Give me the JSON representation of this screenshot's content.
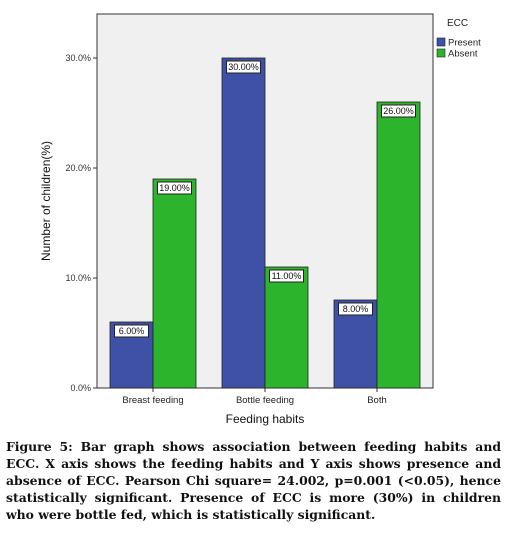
{
  "chart_data": {
    "type": "bar",
    "categories": [
      "Breast feeding",
      "Bottle feeding",
      "Both"
    ],
    "series": [
      {
        "name": "Present",
        "values": [
          6.0,
          30.0,
          8.0
        ],
        "labels": [
          "6.00%",
          "30.00%",
          "8.00%"
        ],
        "color": "#3f51a6"
      },
      {
        "name": "Absent",
        "values": [
          19.0,
          11.0,
          26.0
        ],
        "labels": [
          "19.00%",
          "11.00%",
          "26.00%"
        ],
        "color": "#2db42d"
      }
    ],
    "xlabel": "Feeding habits",
    "ylabel": "Number of children(%)",
    "ylim": [
      0,
      34
    ],
    "yticks": [
      0,
      10,
      20,
      30
    ],
    "ytick_labels": [
      "0.0%",
      "10.0%",
      "20.0%",
      "30.0%"
    ],
    "legend_title": "ECC",
    "legend_position": "right",
    "grid": false,
    "plot_background": "#f0f0f0"
  },
  "caption": "Figure 5: Bar graph shows association between feeding habits and ECC. X axis shows the feeding habits and Y axis shows presence and absence of ECC. Pearson Chi square= 24.002, p=0.001 (<0.05), hence statistically significant. Presence of ECC is more (30%) in children who were bottle fed, which is statistically significant."
}
